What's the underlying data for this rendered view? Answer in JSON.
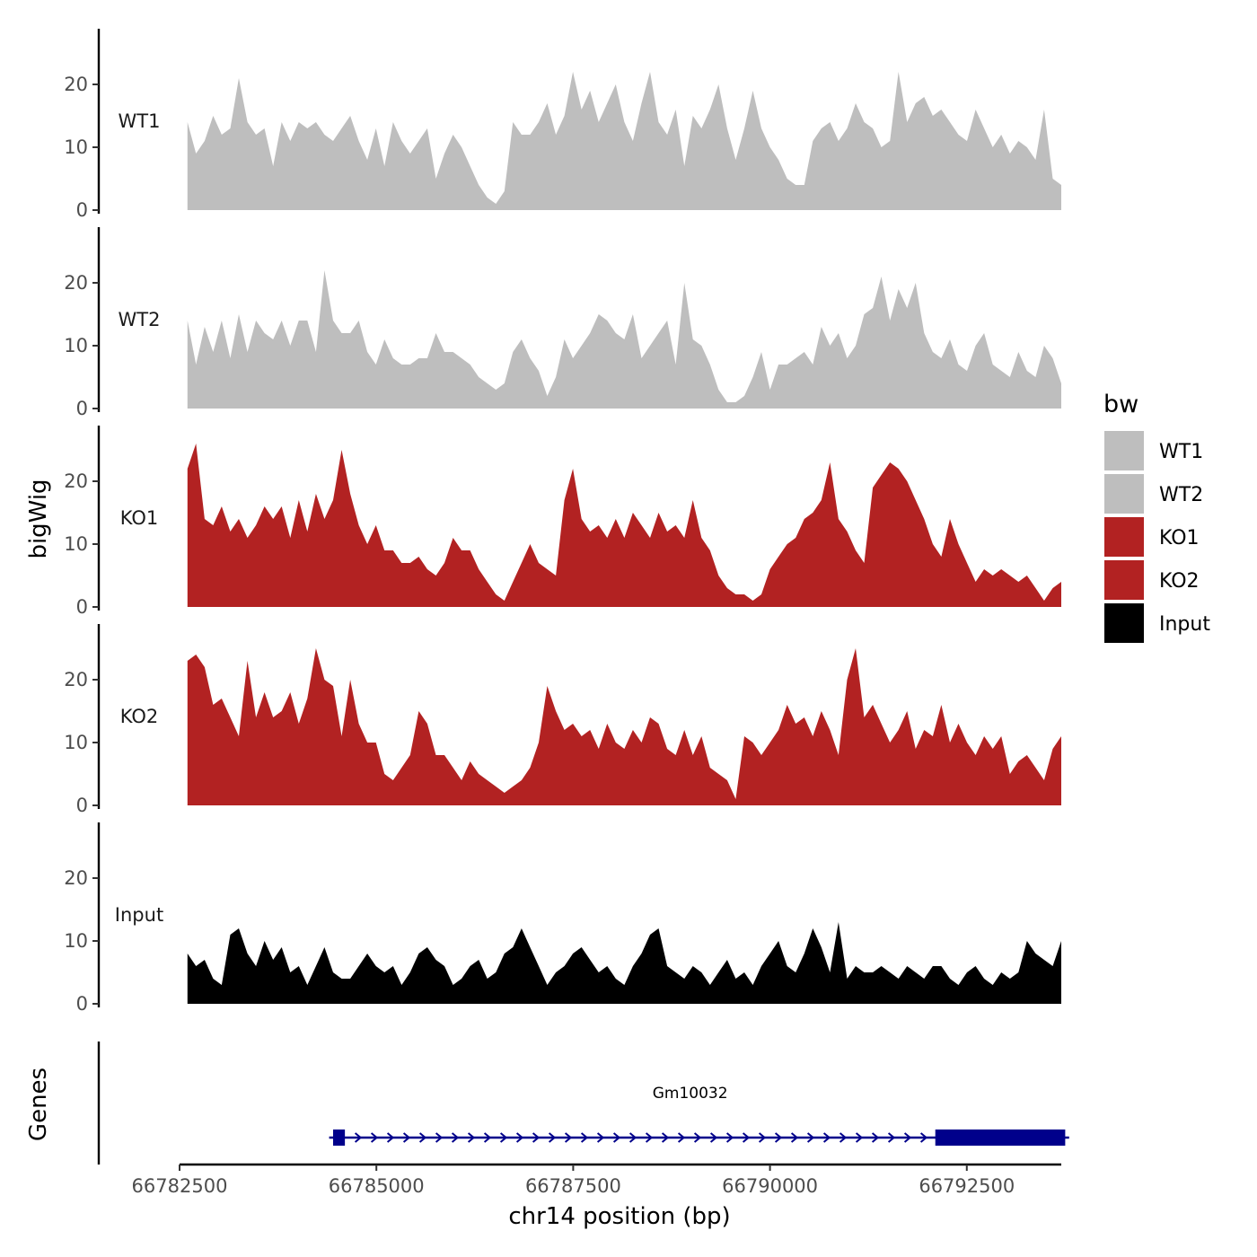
{
  "chart_data": {
    "type": "area",
    "xlabel": "chr14 position (bp)",
    "ylabel": "bigWig",
    "gene_track_label": "Genes",
    "xlim": [
      66782500,
      66793700
    ],
    "x_ticks": [
      66782500,
      66785000,
      66787500,
      66790000,
      66792500
    ],
    "ylim": [
      0,
      28
    ],
    "y_ticks": [
      0,
      10,
      20
    ],
    "legend": {
      "title": "bw",
      "position": "right",
      "entries": [
        {
          "label": "WT1",
          "color": "#bebebe"
        },
        {
          "label": "WT2",
          "color": "#bebebe"
        },
        {
          "label": "KO1",
          "color": "#b22222"
        },
        {
          "label": "KO2",
          "color": "#b22222"
        },
        {
          "label": "Input",
          "color": "#000000"
        }
      ]
    },
    "x_start": 66782600,
    "x_end": 66793700,
    "series": [
      {
        "name": "WT1",
        "color": "#bebebe",
        "values": [
          14,
          9,
          11,
          15,
          12,
          13,
          21,
          14,
          12,
          13,
          7,
          14,
          11,
          14,
          13,
          14,
          12,
          11,
          13,
          15,
          11,
          8,
          13,
          7,
          14,
          11,
          9,
          11,
          13,
          5,
          9,
          12,
          10,
          7,
          4,
          2,
          1,
          3,
          14,
          12,
          12,
          14,
          17,
          12,
          15,
          22,
          16,
          19,
          14,
          17,
          20,
          14,
          11,
          17,
          22,
          14,
          12,
          16,
          7,
          15,
          13,
          16,
          20,
          13,
          8,
          13,
          19,
          13,
          10,
          8,
          5,
          4,
          4,
          11,
          13,
          14,
          11,
          13,
          17,
          14,
          13,
          10,
          11,
          22,
          14,
          17,
          18,
          15,
          16,
          14,
          12,
          11,
          16,
          13,
          10,
          12,
          9,
          11,
          10,
          8,
          16,
          5,
          4
        ]
      },
      {
        "name": "WT2",
        "color": "#bebebe",
        "values": [
          14,
          7,
          13,
          9,
          14,
          8,
          15,
          9,
          14,
          12,
          11,
          14,
          10,
          14,
          14,
          9,
          22,
          14,
          12,
          12,
          14,
          9,
          7,
          11,
          8,
          7,
          7,
          8,
          8,
          12,
          9,
          9,
          8,
          7,
          5,
          4,
          3,
          4,
          9,
          11,
          8,
          6,
          2,
          5,
          11,
          8,
          10,
          12,
          15,
          14,
          12,
          11,
          15,
          8,
          10,
          12,
          14,
          7,
          20,
          11,
          10,
          7,
          3,
          1,
          1,
          2,
          5,
          9,
          3,
          7,
          7,
          8,
          9,
          7,
          13,
          10,
          12,
          8,
          10,
          15,
          16,
          21,
          14,
          19,
          16,
          20,
          12,
          9,
          8,
          11,
          7,
          6,
          10,
          12,
          7,
          6,
          5,
          9,
          6,
          5,
          10,
          8,
          4
        ]
      },
      {
        "name": "KO1",
        "color": "#b22222",
        "values": [
          22,
          26,
          14,
          13,
          16,
          12,
          14,
          11,
          13,
          16,
          14,
          16,
          11,
          17,
          12,
          18,
          14,
          17,
          25,
          18,
          13,
          10,
          13,
          9,
          9,
          7,
          7,
          8,
          6,
          5,
          7,
          11,
          9,
          9,
          6,
          4,
          2,
          1,
          4,
          7,
          10,
          7,
          6,
          5,
          17,
          22,
          14,
          12,
          13,
          11,
          14,
          11,
          15,
          13,
          11,
          15,
          12,
          13,
          11,
          17,
          11,
          9,
          5,
          3,
          2,
          2,
          1,
          2,
          6,
          8,
          10,
          11,
          14,
          15,
          17,
          23,
          14,
          12,
          9,
          7,
          19,
          21,
          23,
          22,
          20,
          17,
          14,
          10,
          8,
          14,
          10,
          7,
          4,
          6,
          5,
          6,
          5,
          4,
          5,
          3,
          1,
          3,
          4
        ]
      },
      {
        "name": "KO2",
        "color": "#b22222",
        "values": [
          23,
          24,
          22,
          16,
          17,
          14,
          11,
          23,
          14,
          18,
          14,
          15,
          18,
          13,
          17,
          25,
          20,
          19,
          11,
          20,
          13,
          10,
          10,
          5,
          4,
          6,
          8,
          15,
          13,
          8,
          8,
          6,
          4,
          7,
          5,
          4,
          3,
          2,
          3,
          4,
          6,
          10,
          19,
          15,
          12,
          13,
          11,
          12,
          9,
          13,
          10,
          9,
          12,
          10,
          14,
          13,
          9,
          8,
          12,
          8,
          11,
          6,
          5,
          4,
          1,
          11,
          10,
          8,
          10,
          12,
          16,
          13,
          14,
          11,
          15,
          12,
          8,
          20,
          25,
          14,
          16,
          13,
          10,
          12,
          15,
          9,
          12,
          11,
          16,
          10,
          13,
          10,
          8,
          11,
          9,
          11,
          5,
          7,
          8,
          6,
          4,
          9,
          11
        ]
      },
      {
        "name": "Input",
        "color": "#000000",
        "values": [
          8,
          6,
          7,
          4,
          3,
          11,
          12,
          8,
          6,
          10,
          7,
          9,
          5,
          6,
          3,
          6,
          9,
          5,
          4,
          4,
          6,
          8,
          6,
          5,
          6,
          3,
          5,
          8,
          9,
          7,
          6,
          3,
          4,
          6,
          7,
          4,
          5,
          8,
          9,
          12,
          9,
          6,
          3,
          5,
          6,
          8,
          9,
          7,
          5,
          6,
          4,
          3,
          6,
          8,
          11,
          12,
          6,
          5,
          4,
          6,
          5,
          3,
          5,
          7,
          4,
          5,
          3,
          6,
          8,
          10,
          6,
          5,
          8,
          12,
          9,
          5,
          13,
          4,
          6,
          5,
          5,
          6,
          5,
          4,
          6,
          5,
          4,
          6,
          6,
          4,
          3,
          5,
          6,
          4,
          3,
          5,
          4,
          5,
          10,
          8,
          7,
          6,
          10
        ]
      }
    ],
    "genes": [
      {
        "name": "Gm10032",
        "start": 66784400,
        "end": 66793800,
        "strand": "+",
        "exons": [
          [
            66784450,
            66784600
          ],
          [
            66792100,
            66793750
          ]
        ]
      }
    ]
  }
}
